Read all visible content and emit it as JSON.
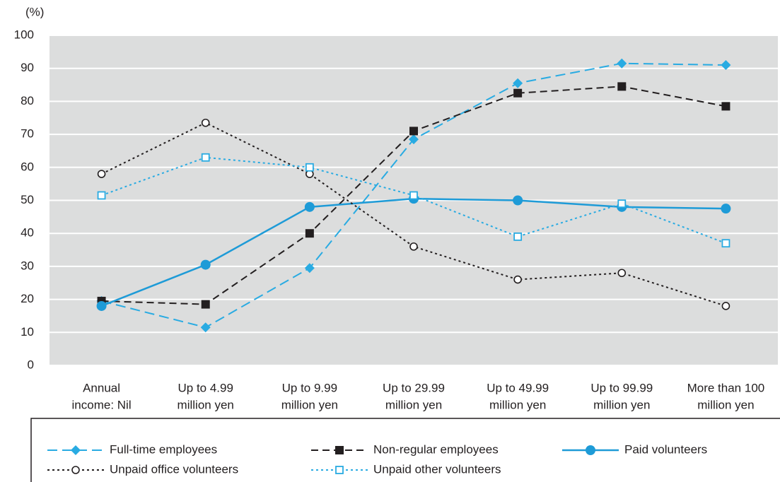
{
  "chart_data": {
    "type": "line",
    "y_label": "(%)",
    "categories": [
      [
        "Annual",
        "income: Nil"
      ],
      [
        "Up to 4.99",
        "million yen"
      ],
      [
        "Up to 9.99",
        "million yen"
      ],
      [
        "Up to 29.99",
        "million yen"
      ],
      [
        "Up to 49.99",
        "million yen"
      ],
      [
        "Up to 99.99",
        "million yen"
      ],
      [
        "More than 100",
        "million yen"
      ]
    ],
    "ylim": [
      0,
      100
    ],
    "yticks": [
      0,
      10,
      20,
      30,
      40,
      50,
      60,
      70,
      80,
      90,
      100
    ],
    "grid": true,
    "legend": "bottom",
    "series": [
      {
        "name": "Full-time employees",
        "color": "#29abe2",
        "dash": "dashed-long",
        "marker": "diamond",
        "values": [
          19.5,
          11.5,
          29.5,
          68.5,
          85.5,
          91.5,
          91
        ]
      },
      {
        "name": "Non-regular employees",
        "color": "#231f20",
        "dash": "dashed",
        "marker": "square",
        "values": [
          19.5,
          18.5,
          40,
          71,
          82.5,
          84.5,
          78.5
        ]
      },
      {
        "name": "Paid volunteers",
        "color": "#1e9bd7",
        "dash": "solid",
        "marker": "circle",
        "values": [
          18,
          30.5,
          48,
          50.5,
          50,
          48,
          47.5
        ]
      },
      {
        "name": "Unpaid office volunteers",
        "color": "#231f20",
        "dash": "dotted",
        "marker": "open-circle",
        "values": [
          58,
          73.5,
          58,
          36,
          26,
          28,
          18
        ]
      },
      {
        "name": "Unpaid other volunteers",
        "color": "#29abe2",
        "dash": "dotted",
        "marker": "open-square",
        "values": [
          51.5,
          63,
          60,
          51.5,
          39,
          49,
          37
        ]
      }
    ]
  }
}
